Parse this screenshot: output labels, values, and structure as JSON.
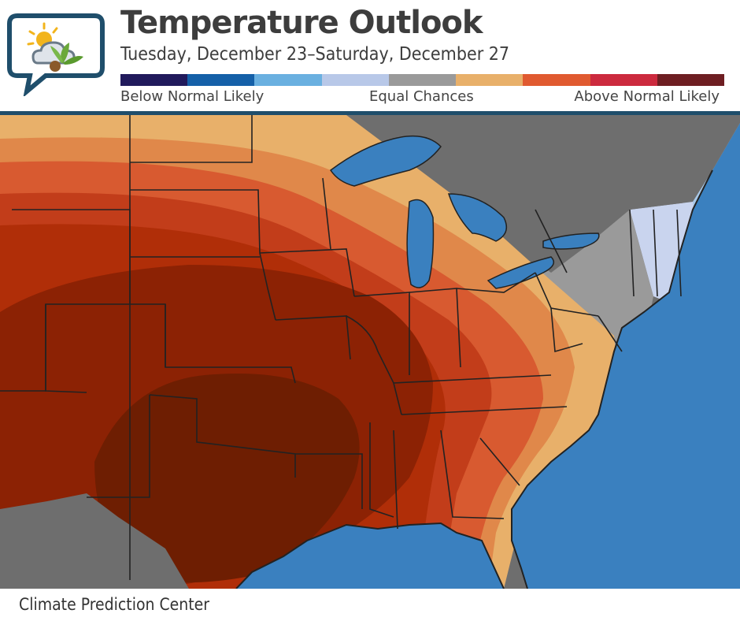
{
  "header": {
    "title": "Temperature Outlook",
    "subtitle": "Tuesday, December 23–Saturday, December 27"
  },
  "legend": {
    "colors": [
      "#211a5c",
      "#1560a8",
      "#6ab0e0",
      "#b8c8e8",
      "#9a9a9a",
      "#e8b06a",
      "#e05a30",
      "#cc2a3e",
      "#6e1e22"
    ],
    "labels": {
      "below": "Below Normal Likely",
      "equal": "Equal Chances",
      "above": "Above Normal Likely"
    }
  },
  "map": {
    "colors": {
      "ocean": "#3a80bf",
      "land_other": "#6e6e6e",
      "lake": "#3a80bf",
      "equal_chances": "#9a9a9a",
      "below_normal_light": "#c9d4ee",
      "below_normal_lighter": "#a8c8e8",
      "above_30": "#e8b06a",
      "above_40": "#e0884a",
      "above_50": "#d85a30",
      "above_60": "#c23d1a",
      "above_70": "#b02e08",
      "above_80": "#8c2204",
      "above_90": "#6e1e02"
    }
  },
  "footer": {
    "credit": "Climate Prediction Center"
  }
}
